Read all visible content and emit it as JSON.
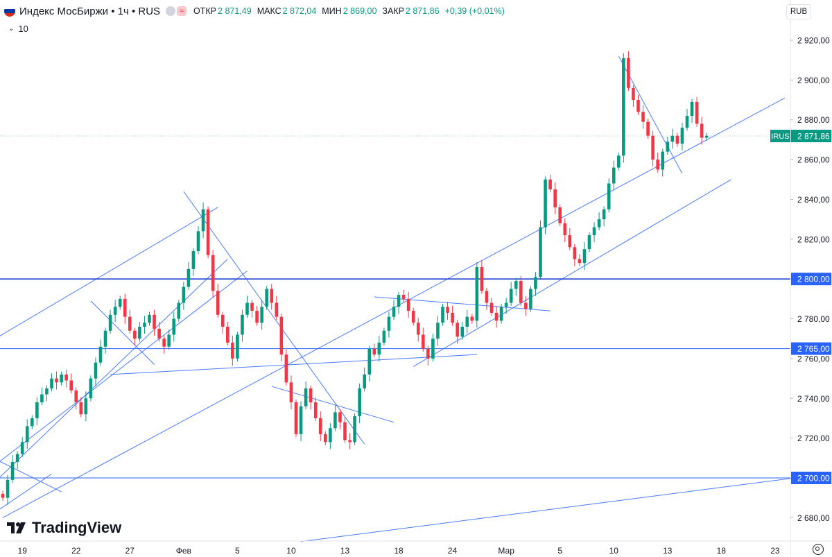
{
  "header": {
    "symbol": "Индекс МосБиржи • 1ч • RUS",
    "ohlc": [
      {
        "label": "ОТКР",
        "value": "2 871,49"
      },
      {
        "label": "МАКС",
        "value": "2 872,04"
      },
      {
        "label": "МИН",
        "value": "2 869,00"
      },
      {
        "label": "ЗАКР",
        "value": "2 871,86"
      }
    ],
    "change": "+0,39 (+0,01%)",
    "pink_badge": "≈",
    "interval_value": "10",
    "currency": "RUB"
  },
  "logo_text": "TradingView",
  "colors": {
    "up": "#089981",
    "down": "#f23645",
    "line": "#2962ff",
    "support": "#1e3fd4"
  },
  "chart_data": {
    "type": "candlestick",
    "title": "Индекс МосБиржи • 1ч • RUS",
    "ylim": [
      2665,
      2935
    ],
    "y_ticks": [
      "2 920,00",
      "2 900,00",
      "2 880,00",
      "2 860,00",
      "2 840,00",
      "2 820,00",
      "2 800,00",
      "2 780,00",
      "2 760,00",
      "2 740,00",
      "2 720,00",
      "2 700,00",
      "2 680,00"
    ],
    "y_tick_values": [
      2920,
      2900,
      2880,
      2860,
      2840,
      2820,
      2800,
      2780,
      2760,
      2740,
      2720,
      2700,
      2680
    ],
    "x_ticks": [
      "19",
      "22",
      "27",
      "Фев",
      "5",
      "10",
      "13",
      "18",
      "24",
      "Мар",
      "5",
      "10",
      "13",
      "18",
      "23"
    ],
    "x_tick_index": [
      4,
      15,
      26,
      37,
      48,
      59,
      70,
      81,
      92,
      103,
      114,
      125,
      136,
      147,
      158
    ],
    "closes": [
      2690,
      2699,
      2708,
      2712,
      2718,
      2726,
      2730,
      2738,
      2742,
      2745,
      2750,
      2748,
      2752,
      2749,
      2744,
      2738,
      2732,
      2740,
      2750,
      2758,
      2766,
      2774,
      2782,
      2786,
      2790,
      2781,
      2774,
      2770,
      2776,
      2778,
      2782,
      2775,
      2770,
      2766,
      2772,
      2780,
      2788,
      2796,
      2805,
      2814,
      2824,
      2835,
      2812,
      2794,
      2782,
      2776,
      2768,
      2760,
      2772,
      2782,
      2788,
      2784,
      2778,
      2786,
      2795,
      2788,
      2781,
      2762,
      2748,
      2738,
      2722,
      2736,
      2745,
      2738,
      2730,
      2722,
      2718,
      2725,
      2733,
      2728,
      2719,
      2718,
      2731,
      2745,
      2752,
      2765,
      2762,
      2768,
      2774,
      2781,
      2786,
      2792,
      2790,
      2784,
      2778,
      2772,
      2765,
      2760,
      2770,
      2778,
      2786,
      2783,
      2778,
      2771,
      2776,
      2781,
      2779,
      2806,
      2794,
      2788,
      2783,
      2779,
      2786,
      2788,
      2795,
      2799,
      2788,
      2785,
      2795,
      2801,
      2826,
      2850,
      2845,
      2836,
      2828,
      2822,
      2816,
      2810,
      2808,
      2815,
      2822,
      2826,
      2830,
      2835,
      2848,
      2856,
      2862,
      2911,
      2896,
      2890,
      2884,
      2879,
      2872,
      2860,
      2855,
      2864,
      2869,
      2872,
      2868,
      2876,
      2882,
      2889,
      2878,
      2871,
      2872
    ],
    "annotations": [
      {
        "type": "price_label",
        "text": "2 800,00",
        "value": 2800
      },
      {
        "type": "price_label",
        "text": "2 765,00",
        "value": 2765
      },
      {
        "type": "price_label",
        "text": "2 700,00",
        "value": 2700
      },
      {
        "type": "last_price_label",
        "tag": "IRUS",
        "text": "2 871,86",
        "value": 2871.86
      }
    ]
  }
}
